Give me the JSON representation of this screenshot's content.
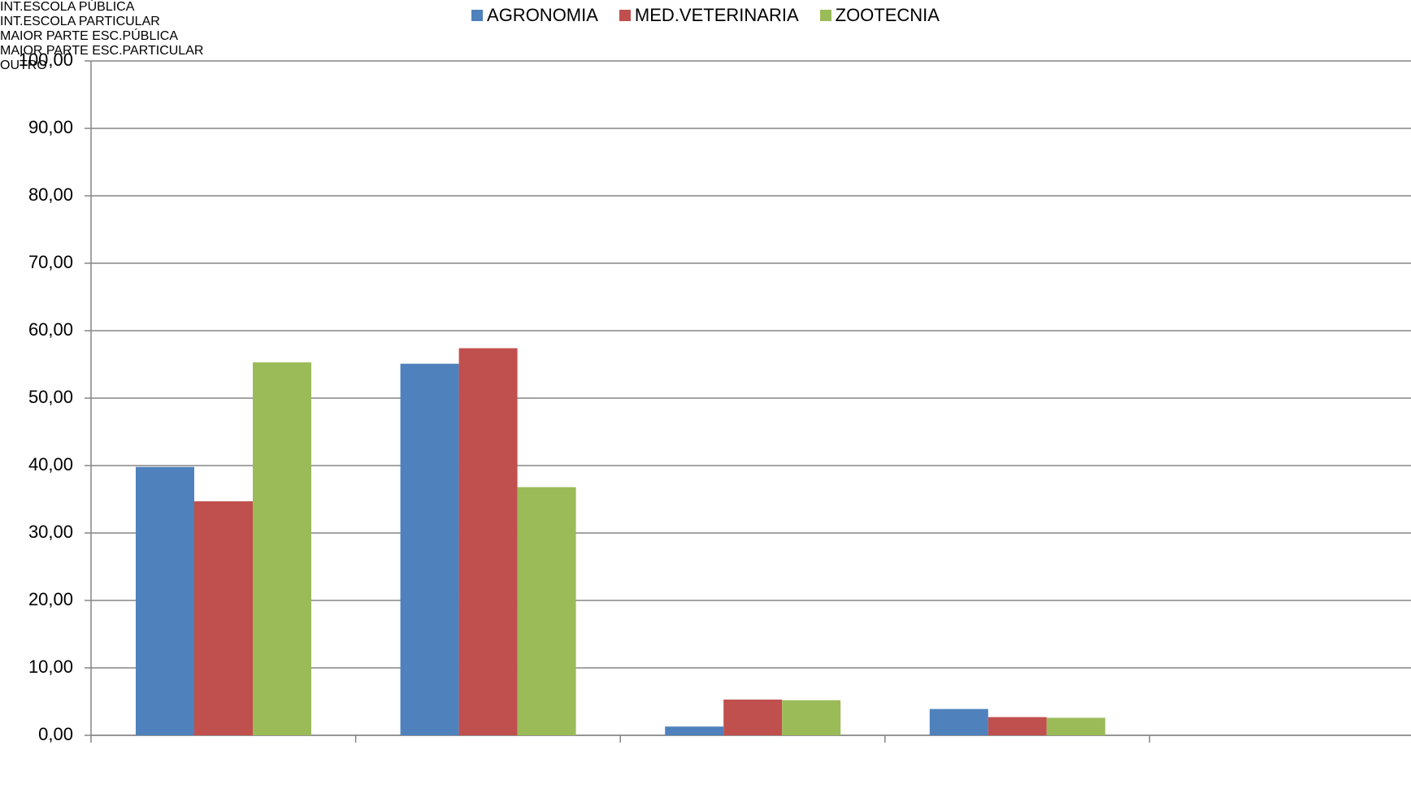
{
  "chart_data": {
    "type": "bar",
    "categories": [
      "INT.ESCOLA PÚBLICA",
      "INT.ESCOLA PARTICULAR",
      "MAIOR PARTE ESC.PÚBLICA",
      "MAIOR PARTE ESC.PARTICULAR",
      "OUTRO"
    ],
    "series": [
      {
        "name": "AGRONOMIA",
        "color": "#4f81bd",
        "values": [
          39.8,
          55.1,
          1.3,
          3.9,
          0
        ]
      },
      {
        "name": "MED.VETERINARIA",
        "color": "#c0504d",
        "values": [
          34.7,
          57.4,
          5.3,
          2.7,
          0
        ]
      },
      {
        "name": "ZOOTECNIA",
        "color": "#9bbb59",
        "values": [
          55.3,
          36.8,
          5.2,
          2.6,
          0
        ]
      }
    ],
    "ylim": [
      0,
      100
    ],
    "yticks": [
      {
        "value": 0,
        "label": "0,00"
      },
      {
        "value": 10,
        "label": "10,00"
      },
      {
        "value": 20,
        "label": "20,00"
      },
      {
        "value": 30,
        "label": "30,00"
      },
      {
        "value": 40,
        "label": "40,00"
      },
      {
        "value": 50,
        "label": "50,00"
      },
      {
        "value": 60,
        "label": "60,00"
      },
      {
        "value": 70,
        "label": "70,00"
      },
      {
        "value": 80,
        "label": "80,00"
      },
      {
        "value": 90,
        "label": "90,00"
      },
      {
        "value": 100,
        "label": "100,00"
      }
    ],
    "grid": true,
    "legend": "top"
  }
}
